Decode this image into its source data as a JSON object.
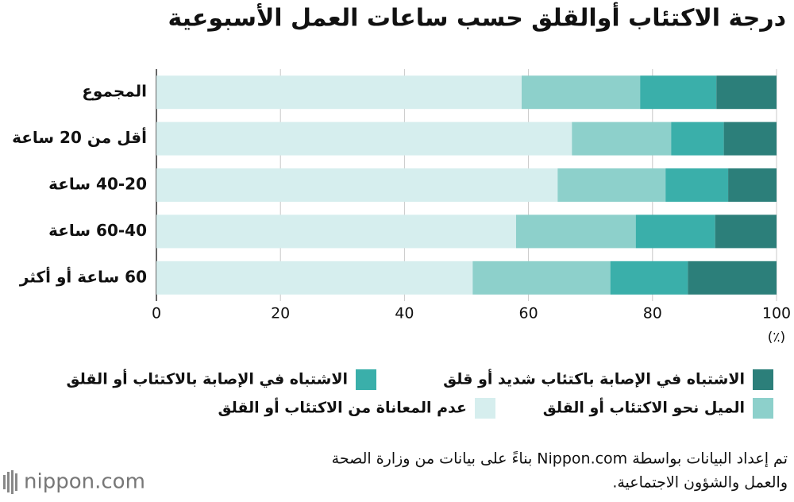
{
  "chart_data": {
    "type": "stacked-bar-horizontal",
    "title": "درجة الاكتئاب أوالقلق حسب ساعات العمل الأسبوعية",
    "categories": [
      "المجموع",
      "أقل من 20 ساعة",
      "40-20 ساعة",
      "60-40 ساعة",
      "60 ساعة أو أكثر"
    ],
    "series": [
      {
        "name": "عدم المعاناة من الاكتئاب أو القلق",
        "color": "#d6eeee",
        "values": [
          58.9,
          67.0,
          64.7,
          58.0,
          51.0
        ]
      },
      {
        "name": "الميل نحو الاكتئاب أو القلق",
        "color": "#8dd0cb",
        "values": [
          19.1,
          16.0,
          17.4,
          19.3,
          22.2
        ]
      },
      {
        "name": "الاشتباه في الإصابة بالاكتئاب أو القلق",
        "color": "#3aafaa",
        "values": [
          12.3,
          8.5,
          10.1,
          12.8,
          12.5
        ]
      },
      {
        "name": "الاشتباه في الإصابة باكتئاب شديد أو قلق",
        "color": "#2c7f7a",
        "values": [
          9.7,
          8.5,
          7.8,
          9.9,
          14.3
        ]
      }
    ],
    "xlim": [
      0,
      100
    ],
    "xticks": [
      0,
      20,
      40,
      60,
      80,
      100
    ],
    "x_unit": "(٪)",
    "grid": true,
    "note": [
      "تم إعداد البيانات بواسطة Nippon.com بناءً على بيانات من وزارة الصحة",
      "والعمل والشؤون الاجتماعية."
    ],
    "logo": "nippon.com"
  }
}
